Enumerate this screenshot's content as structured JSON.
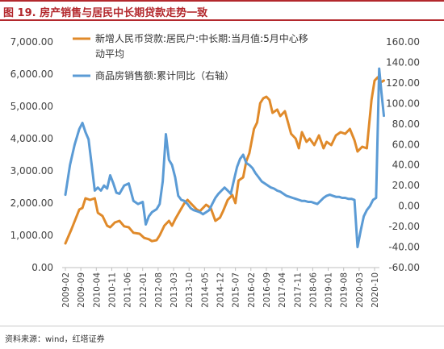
{
  "header": {
    "title": "图 19. 房产销售与居民中长期贷款走势一致"
  },
  "footer": {
    "source": "资料来源：wind，红塔证券"
  },
  "colors": {
    "accent": "#b3282d",
    "orange": "#e08a2a",
    "blue": "#5b9bd5"
  },
  "chart_data": {
    "type": "line",
    "title": "",
    "legend_placement": "top-left",
    "grid": false,
    "y_left": {
      "ylim": [
        0,
        7000
      ],
      "ticks": [
        "0.00",
        "1,000.00",
        "2,000.00",
        "3,000.00",
        "4,000.00",
        "5,000.00",
        "6,000.00",
        "7,000.00"
      ]
    },
    "y_right": {
      "ylim": [
        -60,
        160
      ],
      "ticks": [
        "-60.00",
        "-40.00",
        "-20.00",
        "0.00",
        "20.00",
        "40.00",
        "60.00",
        "80.00",
        "100.00",
        "120.00",
        "140.00",
        "160.00"
      ]
    },
    "x_labels": [
      "2009-02",
      "2009-09",
      "2010-04",
      "2010-11",
      "2011-06",
      "2012-01",
      "2012-08",
      "2013-03",
      "2013-10",
      "2014-05",
      "2014-12",
      "2015-07",
      "2016-02",
      "2016-09",
      "2017-04",
      "2017-11",
      "2018-06",
      "2019-01",
      "2019-08",
      "2020-03",
      "2020-10"
    ],
    "series": [
      {
        "name": "新增人民币贷款:居民户:中长期:当月值:5月中心移动平均",
        "axis": "left",
        "color": "#e08a2a",
        "points": [
          [
            0,
            750
          ],
          [
            0.4,
            1200
          ],
          [
            0.9,
            1800
          ],
          [
            1.1,
            1850
          ],
          [
            1.3,
            2150
          ],
          [
            1.6,
            2100
          ],
          [
            1.9,
            2150
          ],
          [
            2.1,
            1700
          ],
          [
            2.4,
            1600
          ],
          [
            2.7,
            1300
          ],
          [
            2.9,
            1250
          ],
          [
            3.2,
            1400
          ],
          [
            3.5,
            1450
          ],
          [
            3.8,
            1280
          ],
          [
            4.1,
            1250
          ],
          [
            4.4,
            1080
          ],
          [
            4.8,
            1050
          ],
          [
            5.1,
            920
          ],
          [
            5.4,
            880
          ],
          [
            5.6,
            820
          ],
          [
            5.9,
            850
          ],
          [
            6.1,
            1000
          ],
          [
            6.4,
            1300
          ],
          [
            6.7,
            1450
          ],
          [
            6.9,
            1300
          ],
          [
            7.1,
            1500
          ],
          [
            7.4,
            1750
          ],
          [
            7.7,
            2000
          ],
          [
            7.9,
            2100
          ],
          [
            8.2,
            1950
          ],
          [
            8.5,
            1800
          ],
          [
            8.7,
            1750
          ],
          [
            9.1,
            1950
          ],
          [
            9.4,
            1850
          ],
          [
            9.7,
            1450
          ],
          [
            10.0,
            1550
          ],
          [
            10.2,
            1750
          ],
          [
            10.5,
            2100
          ],
          [
            10.8,
            2250
          ],
          [
            11.0,
            2000
          ],
          [
            11.2,
            2700
          ],
          [
            11.5,
            2800
          ],
          [
            11.7,
            3300
          ],
          [
            11.9,
            3550
          ],
          [
            12.2,
            4300
          ],
          [
            12.4,
            4500
          ],
          [
            12.6,
            5100
          ],
          [
            12.8,
            5250
          ],
          [
            13.0,
            5300
          ],
          [
            13.2,
            5200
          ],
          [
            13.4,
            4800
          ],
          [
            13.7,
            4900
          ],
          [
            13.9,
            4700
          ],
          [
            14.2,
            4850
          ],
          [
            14.4,
            4500
          ],
          [
            14.6,
            4150
          ],
          [
            14.9,
            4000
          ],
          [
            15.1,
            3700
          ],
          [
            15.3,
            4200
          ],
          [
            15.6,
            3900
          ],
          [
            15.8,
            4000
          ],
          [
            16.1,
            3800
          ],
          [
            16.4,
            4100
          ],
          [
            16.7,
            3700
          ],
          [
            16.9,
            3900
          ],
          [
            17.2,
            3800
          ],
          [
            17.5,
            4100
          ],
          [
            17.8,
            4200
          ],
          [
            18.1,
            4150
          ],
          [
            18.4,
            4300
          ],
          [
            18.7,
            3950
          ],
          [
            18.9,
            3600
          ],
          [
            19.2,
            3750
          ],
          [
            19.5,
            3700
          ],
          [
            19.8,
            5200
          ],
          [
            20.0,
            5800
          ],
          [
            20.2,
            5900
          ],
          [
            20.4,
            5750
          ],
          [
            20.6,
            5800
          ]
        ]
      },
      {
        "name": "商品房销售额:累计同比（右轴）",
        "axis": "right",
        "color": "#5b9bd5",
        "points": [
          [
            0,
            11
          ],
          [
            0.3,
            40
          ],
          [
            0.6,
            60
          ],
          [
            0.9,
            75
          ],
          [
            1.1,
            81
          ],
          [
            1.3,
            72
          ],
          [
            1.5,
            65
          ],
          [
            1.7,
            40
          ],
          [
            1.9,
            15
          ],
          [
            2.1,
            18
          ],
          [
            2.3,
            15
          ],
          [
            2.5,
            20
          ],
          [
            2.7,
            17
          ],
          [
            2.9,
            30
          ],
          [
            3.1,
            22
          ],
          [
            3.3,
            13
          ],
          [
            3.5,
            12
          ],
          [
            3.8,
            20
          ],
          [
            4.1,
            22
          ],
          [
            4.4,
            5
          ],
          [
            4.7,
            2
          ],
          [
            5.0,
            4
          ],
          [
            5.2,
            -18
          ],
          [
            5.4,
            -10
          ],
          [
            5.6,
            -6
          ],
          [
            5.9,
            -3
          ],
          [
            6.1,
            2
          ],
          [
            6.3,
            24
          ],
          [
            6.5,
            70
          ],
          [
            6.7,
            45
          ],
          [
            6.9,
            40
          ],
          [
            7.1,
            28
          ],
          [
            7.3,
            10
          ],
          [
            7.5,
            6
          ],
          [
            7.7,
            5
          ],
          [
            7.9,
            2
          ],
          [
            8.1,
            -2
          ],
          [
            8.3,
            -4
          ],
          [
            8.5,
            -5
          ],
          [
            8.7,
            -6
          ],
          [
            8.9,
            -8
          ],
          [
            9.1,
            -6
          ],
          [
            9.3,
            -4
          ],
          [
            9.5,
            2
          ],
          [
            9.7,
            8
          ],
          [
            9.9,
            12
          ],
          [
            10.1,
            15
          ],
          [
            10.3,
            18
          ],
          [
            10.5,
            15
          ],
          [
            10.7,
            12
          ],
          [
            10.9,
            25
          ],
          [
            11.1,
            38
          ],
          [
            11.3,
            46
          ],
          [
            11.5,
            50
          ],
          [
            11.7,
            42
          ],
          [
            11.9,
            40
          ],
          [
            12.1,
            37
          ],
          [
            12.3,
            32
          ],
          [
            12.5,
            28
          ],
          [
            12.7,
            24
          ],
          [
            12.9,
            22
          ],
          [
            13.1,
            20
          ],
          [
            13.3,
            18
          ],
          [
            13.5,
            17
          ],
          [
            13.7,
            15
          ],
          [
            13.9,
            14
          ],
          [
            14.1,
            12
          ],
          [
            14.3,
            10
          ],
          [
            14.5,
            9
          ],
          [
            14.7,
            8
          ],
          [
            14.9,
            7
          ],
          [
            15.1,
            6
          ],
          [
            15.3,
            5
          ],
          [
            15.5,
            5
          ],
          [
            15.7,
            4
          ],
          [
            15.9,
            4
          ],
          [
            16.1,
            3
          ],
          [
            16.3,
            2
          ],
          [
            16.5,
            5
          ],
          [
            16.7,
            8
          ],
          [
            16.9,
            10
          ],
          [
            17.1,
            11
          ],
          [
            17.3,
            10
          ],
          [
            17.5,
            9
          ],
          [
            17.7,
            9
          ],
          [
            17.9,
            8
          ],
          [
            18.1,
            8
          ],
          [
            18.3,
            7
          ],
          [
            18.5,
            7
          ],
          [
            18.7,
            6
          ],
          [
            18.9,
            -40
          ],
          [
            19.1,
            -24
          ],
          [
            19.3,
            -10
          ],
          [
            19.5,
            -4
          ],
          [
            19.7,
            0
          ],
          [
            19.9,
            6
          ],
          [
            20.1,
            8
          ],
          [
            20.3,
            134
          ],
          [
            20.45,
            110
          ],
          [
            20.6,
            88
          ]
        ]
      }
    ]
  }
}
